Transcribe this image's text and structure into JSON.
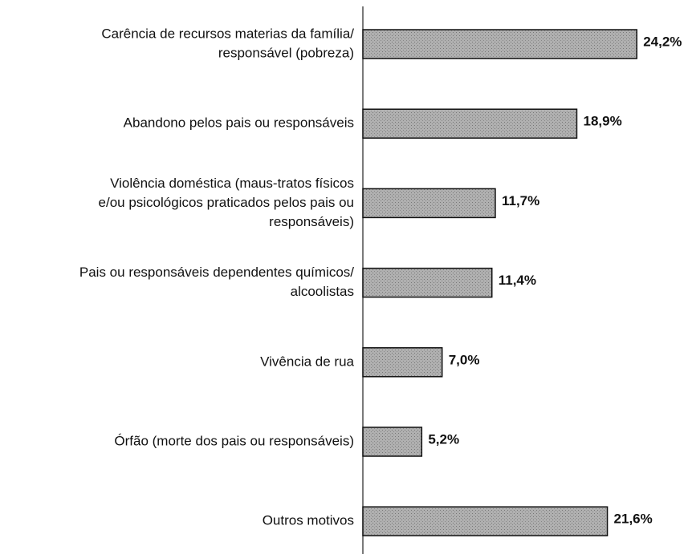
{
  "chart_data": {
    "type": "bar",
    "orientation": "horizontal",
    "color": "#a9a9a9",
    "categories": [
      [
        "Carência de recursos materias da família/",
        "responsável (pobreza)"
      ],
      [
        "Abandono pelos pais ou responsáveis"
      ],
      [
        "Violência doméstica (maus-tratos físicos",
        "e/ou psicológicos praticados pelos pais ou",
        "responsáveis)"
      ],
      [
        "Pais ou responsáveis dependentes químicos/",
        "alcoolistas"
      ],
      [
        "Vivência de rua"
      ],
      [
        "Órfão (morte dos pais ou responsáveis)"
      ],
      [
        "Outros motivos"
      ]
    ],
    "values": [
      24.2,
      18.9,
      11.7,
      11.4,
      7.0,
      5.2,
      21.6
    ],
    "value_labels": [
      "24,2%",
      "18,9%",
      "11,7%",
      "11,4%",
      "7,0%",
      "5,2%",
      "21,6%"
    ]
  }
}
